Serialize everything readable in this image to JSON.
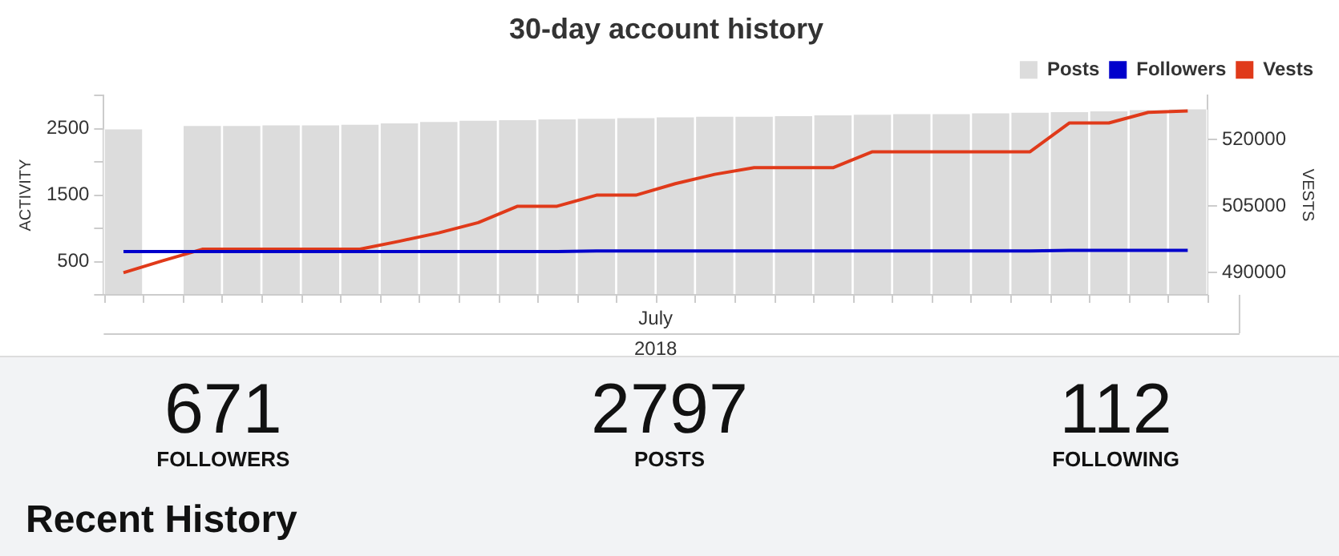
{
  "chart_data": {
    "type": "bar",
    "title": "30-day account history",
    "ylabel": "ACTIVITY",
    "y2label": "VESTS",
    "categories": [
      null,
      null,
      null,
      null,
      null,
      null,
      null,
      null,
      null,
      null,
      null,
      null,
      null,
      null,
      null,
      null,
      null,
      null,
      null,
      null,
      null,
      null,
      null,
      null,
      null,
      null,
      null,
      null
    ],
    "series": [
      {
        "name": "Posts",
        "color": "#dcdcdc",
        "values": [
          2490,
          null,
          2540,
          2540,
          2550,
          2550,
          2560,
          2580,
          2600,
          2620,
          2630,
          2640,
          2650,
          2660,
          2670,
          2680,
          2680,
          2690,
          2700,
          2710,
          2720,
          2720,
          2730,
          2740,
          2750,
          2760,
          2780,
          2790
        ]
      },
      {
        "name": "Followers",
        "type": "line",
        "color": "#0000cc",
        "values": [
          650,
          650,
          650,
          650,
          650,
          650,
          650,
          650,
          650,
          650,
          650,
          650,
          660,
          660,
          660,
          660,
          660,
          660,
          660,
          660,
          660,
          660,
          660,
          660,
          670,
          670,
          670,
          670
        ]
      },
      {
        "name": "Vests",
        "type": "line",
        "axis": "y2",
        "color": "#e03a1a",
        "values": [
          490000,
          492700,
          495300,
          495300,
          495300,
          495300,
          495300,
          497100,
          499000,
          501300,
          505000,
          505000,
          507500,
          507500,
          510100,
          512200,
          513700,
          513700,
          513700,
          517300,
          517300,
          517300,
          517300,
          517300,
          523800,
          523800,
          526200,
          526500
        ]
      }
    ],
    "ylim": [
      0,
      3000
    ],
    "yticks": [
      {
        "value": 0,
        "label": null
      },
      500,
      {
        "value": 1000,
        "label": null
      },
      1500,
      {
        "value": 2000,
        "label": null
      },
      2500,
      {
        "value": 3000,
        "label": null
      }
    ],
    "y2lim": [
      485000,
      530000
    ],
    "y2ticks": [
      490000,
      505000,
      520000
    ],
    "legend": "top right",
    "grid": false,
    "marker": "none",
    "annotations": [
      "July",
      "2018",
      "671",
      "FOLLOWERS",
      "2797",
      "POSTS",
      "112",
      "FOLLOWING",
      "Recent History"
    ]
  }
}
